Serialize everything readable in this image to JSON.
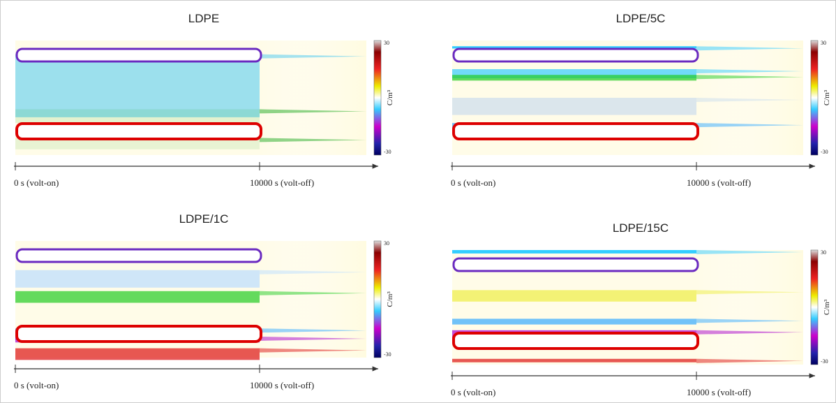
{
  "panels": [
    {
      "title": "LDPE",
      "x_start": "0 s (volt-on)",
      "x_end": "10000 s (volt-off)",
      "colorbar": {
        "label": "C/m³",
        "max": "30",
        "min": "-30"
      }
    },
    {
      "title": "LDPE/5C",
      "x_start": "0 s (volt-on)",
      "x_end": "10000 s (volt-off)",
      "colorbar": {
        "label": "C/m³",
        "max": "30",
        "min": "-30"
      }
    },
    {
      "title": "LDPE/1C",
      "x_start": "0 s (volt-on)",
      "x_end": "10000 s (volt-off)",
      "colorbar": {
        "label": "C/m³",
        "max": "30",
        "min": "-30"
      }
    },
    {
      "title": "LDPE/15C",
      "x_start": "0 s (volt-on)",
      "x_end": "10000 s (volt-off)",
      "colorbar": {
        "label": "C/m³",
        "max": "30",
        "min": "-30"
      }
    }
  ]
}
